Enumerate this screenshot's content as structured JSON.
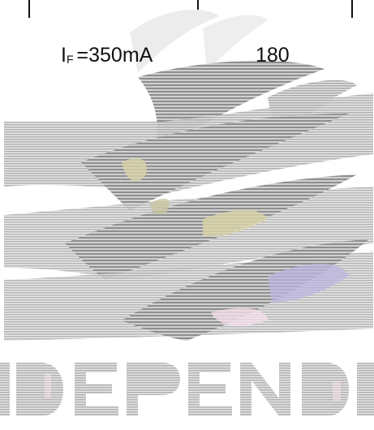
{
  "condition": {
    "symbol": "I",
    "subscript": "F",
    "rest": "=350mA"
  },
  "value": "180",
  "watermark": {
    "type": "striped-logo-watermark",
    "colors": {
      "stripe_gray": "#9a9a9a",
      "stripe_light": "#c8c8c8",
      "accent_yellow": "#d8d2a8",
      "accent_pink": "#f2dce8",
      "accent_purple": "#bcb6e0",
      "block_gray": "#b4b4b4"
    }
  }
}
